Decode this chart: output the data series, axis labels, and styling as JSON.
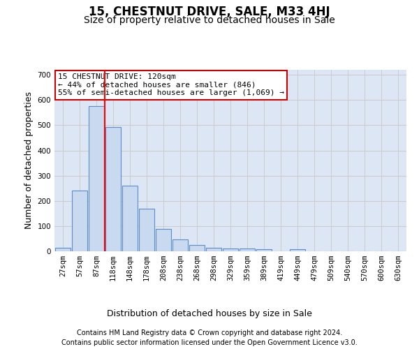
{
  "title": "15, CHESTNUT DRIVE, SALE, M33 4HJ",
  "subtitle": "Size of property relative to detached houses in Sale",
  "xlabel": "Distribution of detached houses by size in Sale",
  "ylabel": "Number of detached properties",
  "footer_line1": "Contains HM Land Registry data © Crown copyright and database right 2024.",
  "footer_line2": "Contains public sector information licensed under the Open Government Licence v3.0.",
  "bin_labels": [
    "27sqm",
    "57sqm",
    "87sqm",
    "118sqm",
    "148sqm",
    "178sqm",
    "208sqm",
    "238sqm",
    "268sqm",
    "298sqm",
    "329sqm",
    "359sqm",
    "389sqm",
    "419sqm",
    "449sqm",
    "479sqm",
    "509sqm",
    "540sqm",
    "570sqm",
    "600sqm",
    "630sqm"
  ],
  "bar_values": [
    13,
    240,
    575,
    493,
    260,
    170,
    88,
    48,
    25,
    13,
    12,
    10,
    7,
    0,
    7,
    0,
    0,
    0,
    0,
    0,
    0
  ],
  "bar_color": "#c9d9f0",
  "bar_edge_color": "#5b8dc8",
  "red_line_x": 3,
  "annotation_text": "15 CHESTNUT DRIVE: 120sqm\n← 44% of detached houses are smaller (846)\n55% of semi-detached houses are larger (1,069) →",
  "annotation_box_color": "#ffffff",
  "annotation_box_edge": "#cc0000",
  "ylim": [
    0,
    720
  ],
  "yticks": [
    0,
    100,
    200,
    300,
    400,
    500,
    600,
    700
  ],
  "grid_color": "#cccccc",
  "plot_bg_color": "#dce6f5",
  "fig_bg_color": "#ffffff",
  "title_fontsize": 12,
  "subtitle_fontsize": 10,
  "axis_label_fontsize": 9,
  "tick_fontsize": 7.5,
  "footer_fontsize": 7,
  "annotation_fontsize": 8
}
